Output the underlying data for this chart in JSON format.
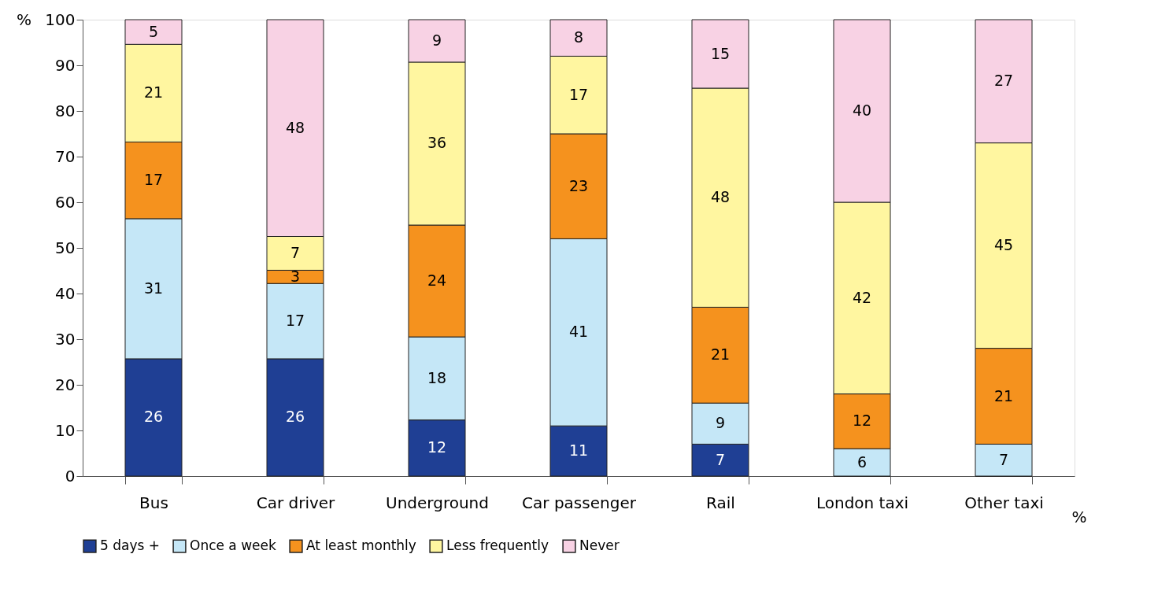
{
  "chart_data": {
    "type": "bar",
    "stacked": true,
    "ylabel": "%",
    "xlabel": "%",
    "categories": [
      "Bus",
      "Car driver",
      "Underground",
      "Car passenger",
      "Rail",
      "London taxi",
      "Other taxi"
    ],
    "ylim": [
      0,
      100
    ],
    "yticks": [
      0,
      10,
      20,
      30,
      40,
      50,
      60,
      70,
      80,
      90,
      100
    ],
    "grid": false,
    "legend": "bottom",
    "series": [
      {
        "name": "5 days +",
        "color": "#1f3f94",
        "values": [
          25.7,
          25.7,
          12.3,
          11,
          7,
          0,
          0
        ],
        "value_labels": [
          "26",
          "26",
          "12",
          "11",
          "7",
          null,
          null
        ]
      },
      {
        "name": "Once a week",
        "color": "#c5e7f7",
        "values": [
          30.7,
          16.5,
          18.2,
          41,
          9,
          6,
          7
        ],
        "value_labels": [
          "31",
          "17",
          "18",
          "41",
          "9",
          "6",
          "7"
        ]
      },
      {
        "name": "At least monthly",
        "color": "#f5921e",
        "values": [
          16.8,
          2.9,
          24.5,
          23,
          21,
          12,
          21
        ],
        "value_labels": [
          "17",
          "3",
          "24",
          "23",
          "21",
          "12",
          "21"
        ]
      },
      {
        "name": "Less frequently",
        "color": "#fff6a0",
        "values": [
          21.4,
          7.4,
          35.7,
          17,
          48,
          42,
          45
        ],
        "value_labels": [
          "21",
          "7",
          "36",
          "17",
          "48",
          "42",
          "45"
        ]
      },
      {
        "name": "Never",
        "color": "#f8d2e4",
        "values": [
          5.4,
          47.5,
          9.3,
          8,
          15,
          40,
          27
        ],
        "value_labels": [
          "5",
          "48",
          "9",
          "8",
          "15",
          "40",
          "27"
        ]
      }
    ]
  }
}
